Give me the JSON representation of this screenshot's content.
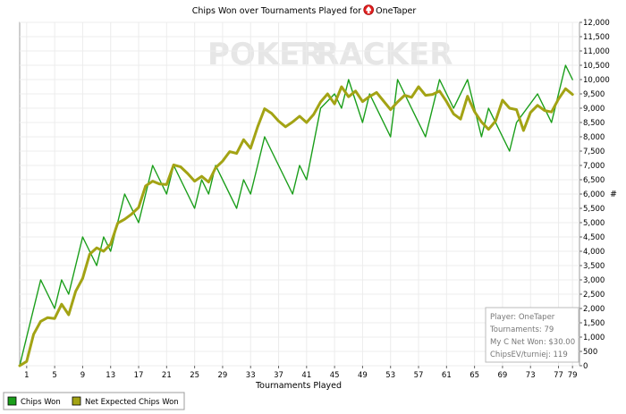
{
  "chart_data": {
    "type": "line",
    "title_prefix": "Chips Won over Tournaments Played for",
    "player": "OneTaper",
    "xlabel": "Tournaments Played",
    "ylabel": "#",
    "watermark": {
      "left": "POKER",
      "right": "TRACKER"
    },
    "xlim": [
      0,
      80
    ],
    "ylim": [
      0,
      12000
    ],
    "x_ticks": [
      1,
      5,
      9,
      13,
      17,
      21,
      25,
      29,
      33,
      37,
      41,
      45,
      49,
      53,
      57,
      61,
      65,
      69,
      73,
      77,
      79
    ],
    "y_ticks": [
      0,
      500,
      1000,
      1500,
      2000,
      2500,
      3000,
      3500,
      4000,
      4500,
      5000,
      5500,
      6000,
      6500,
      7000,
      7500,
      8000,
      8500,
      9000,
      9500,
      10000,
      10500,
      11000,
      11500,
      12000
    ],
    "y_tick_labels": [
      "0",
      "500",
      "1,000",
      "1,500",
      "2,000",
      "2,500",
      "3,000",
      "3,500",
      "4,000",
      "4,500",
      "5,000",
      "5,500",
      "6,000",
      "6,500",
      "7,000",
      "7,500",
      "8,000",
      "8,500",
      "9,000",
      "9,500",
      "10,000",
      "10,500",
      "11,000",
      "11,500",
      "12,000"
    ],
    "grid": true,
    "legend_position": "bottom-left",
    "info_box": {
      "player": "Player: OneTaper",
      "tournaments": "Tournaments: 79",
      "net_won": "My C Net Won: $30.00",
      "chips_ev": "ChipsEV/turniej: 119"
    },
    "series": [
      {
        "name": "Chips Won",
        "color": "#1a9e1a",
        "x": [
          0,
          1,
          3,
          5,
          6,
          7,
          9,
          11,
          12,
          13,
          15,
          17,
          19,
          21,
          22,
          25,
          26,
          27,
          28,
          31,
          32,
          33,
          34,
          35,
          39,
          40,
          41,
          43,
          45,
          46,
          47,
          49,
          50,
          53,
          54,
          56,
          58,
          60,
          62,
          64,
          66,
          67,
          70,
          71,
          74,
          76,
          78,
          79
        ],
        "y": [
          0,
          1000,
          3000,
          2000,
          3000,
          2500,
          4500,
          3500,
          4500,
          4000,
          6000,
          5000,
          7000,
          6000,
          7000,
          5500,
          6500,
          6000,
          7000,
          5500,
          6500,
          6000,
          7000,
          8000,
          6000,
          7000,
          6500,
          9000,
          9500,
          9000,
          10000,
          8500,
          9500,
          8000,
          10000,
          9000,
          8000,
          10000,
          9000,
          10000,
          8000,
          9000,
          7500,
          8500,
          9500,
          8500,
          10500,
          10000
        ]
      },
      {
        "name": "Net Expected Chips Won",
        "color": "#a3a314",
        "x": [
          0,
          1,
          2,
          3,
          4,
          5,
          6,
          7,
          8,
          9,
          10,
          11,
          12,
          13,
          14,
          15,
          16,
          17,
          18,
          19,
          20,
          21,
          22,
          23,
          24,
          25,
          26,
          27,
          28,
          29,
          30,
          31,
          32,
          33,
          34,
          35,
          36,
          37,
          38,
          39,
          40,
          41,
          42,
          43,
          44,
          45,
          46,
          47,
          48,
          49,
          50,
          51,
          52,
          53,
          54,
          55,
          56,
          57,
          58,
          59,
          60,
          61,
          62,
          63,
          64,
          65,
          66,
          67,
          68,
          69,
          70,
          71,
          72,
          73,
          74,
          75,
          76,
          77,
          78,
          79
        ],
        "y": [
          0,
          150,
          1100,
          1550,
          1680,
          1650,
          2150,
          1780,
          2600,
          3050,
          3900,
          4120,
          4000,
          4250,
          4980,
          5120,
          5300,
          5530,
          6280,
          6450,
          6350,
          6330,
          7020,
          6950,
          6720,
          6450,
          6620,
          6420,
          6920,
          7150,
          7480,
          7420,
          7900,
          7600,
          8350,
          8980,
          8820,
          8550,
          8350,
          8520,
          8720,
          8500,
          8780,
          9220,
          9500,
          9150,
          9750,
          9400,
          9600,
          9230,
          9410,
          9550,
          9250,
          8950,
          9220,
          9450,
          9380,
          9750,
          9450,
          9480,
          9600,
          9230,
          8800,
          8620,
          9420,
          8880,
          8520,
          8260,
          8550,
          9280,
          9000,
          8950,
          8220,
          8850,
          9100,
          8920,
          8870,
          9320,
          9680,
          9480
        ]
      }
    ]
  }
}
